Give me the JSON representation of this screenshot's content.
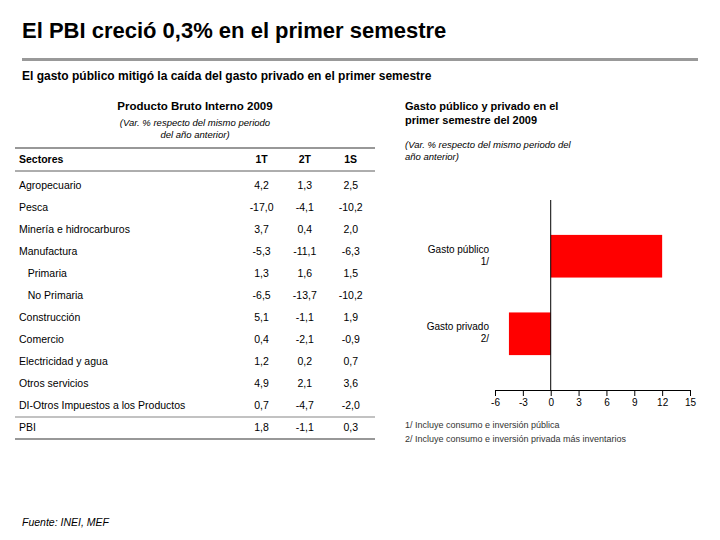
{
  "title": "El PBI creció 0,3% en el primer semestre",
  "subtitle": "El gasto público mitigó la caída del gasto privado en el primer semestre",
  "source": "Fuente: INEI, MEF",
  "chart_data": [
    {
      "type": "table",
      "title": "Producto Bruto Interno 2009",
      "subtitle": "(Var. % respecto del mismo periodo\ndel año anterior)",
      "headers": [
        "Sectores",
        "1T",
        "2T",
        "1S"
      ],
      "rows": [
        [
          "Agropecuario",
          "4,2",
          "1,3",
          "2,5"
        ],
        [
          "Pesca",
          "-17,0",
          "-4,1",
          "-10,2"
        ],
        [
          "Minería e hidrocarburos",
          "3,7",
          "0,4",
          "2,0"
        ],
        [
          "Manufactura",
          "-5,3",
          "-11,1",
          "-6,3"
        ],
        [
          "   Primaria",
          "1,3",
          "1,6",
          "1,5"
        ],
        [
          "   No Primaria",
          "-6,5",
          "-13,7",
          "-10,2"
        ],
        [
          "Construcción",
          "5,1",
          "-1,1",
          "1,9"
        ],
        [
          "Comercio",
          "0,4",
          "-2,1",
          "-0,9"
        ],
        [
          "Electricidad y agua",
          "1,2",
          "0,2",
          "0,7"
        ],
        [
          "Otros servicios",
          "4,9",
          "2,1",
          "3,6"
        ],
        [
          "DI-Otros Impuestos a los Productos",
          "0,7",
          "-4,7",
          "-2,0"
        ],
        [
          "PBI",
          "1,8",
          "-1,1",
          "0,3"
        ]
      ]
    },
    {
      "type": "bar",
      "orientation": "horizontal",
      "title": "Gasto público y privado en el\nprimer semestre del 2009",
      "subtitle": "(Var. % respecto del mismo periodo del\naño anterior)",
      "categories": [
        "Gasto público\n1/",
        "Gasto privado\n2/"
      ],
      "values": [
        12.0,
        -4.5
      ],
      "color": "#ff0000",
      "xlim": [
        -6,
        15
      ],
      "xticks": [
        -6,
        -3,
        0,
        3,
        6,
        9,
        12,
        15
      ],
      "annotations": [
        "1/ Incluye consumo e inversión pública",
        "2/ Incluye consumo e inversión privada más inventarios"
      ]
    }
  ]
}
